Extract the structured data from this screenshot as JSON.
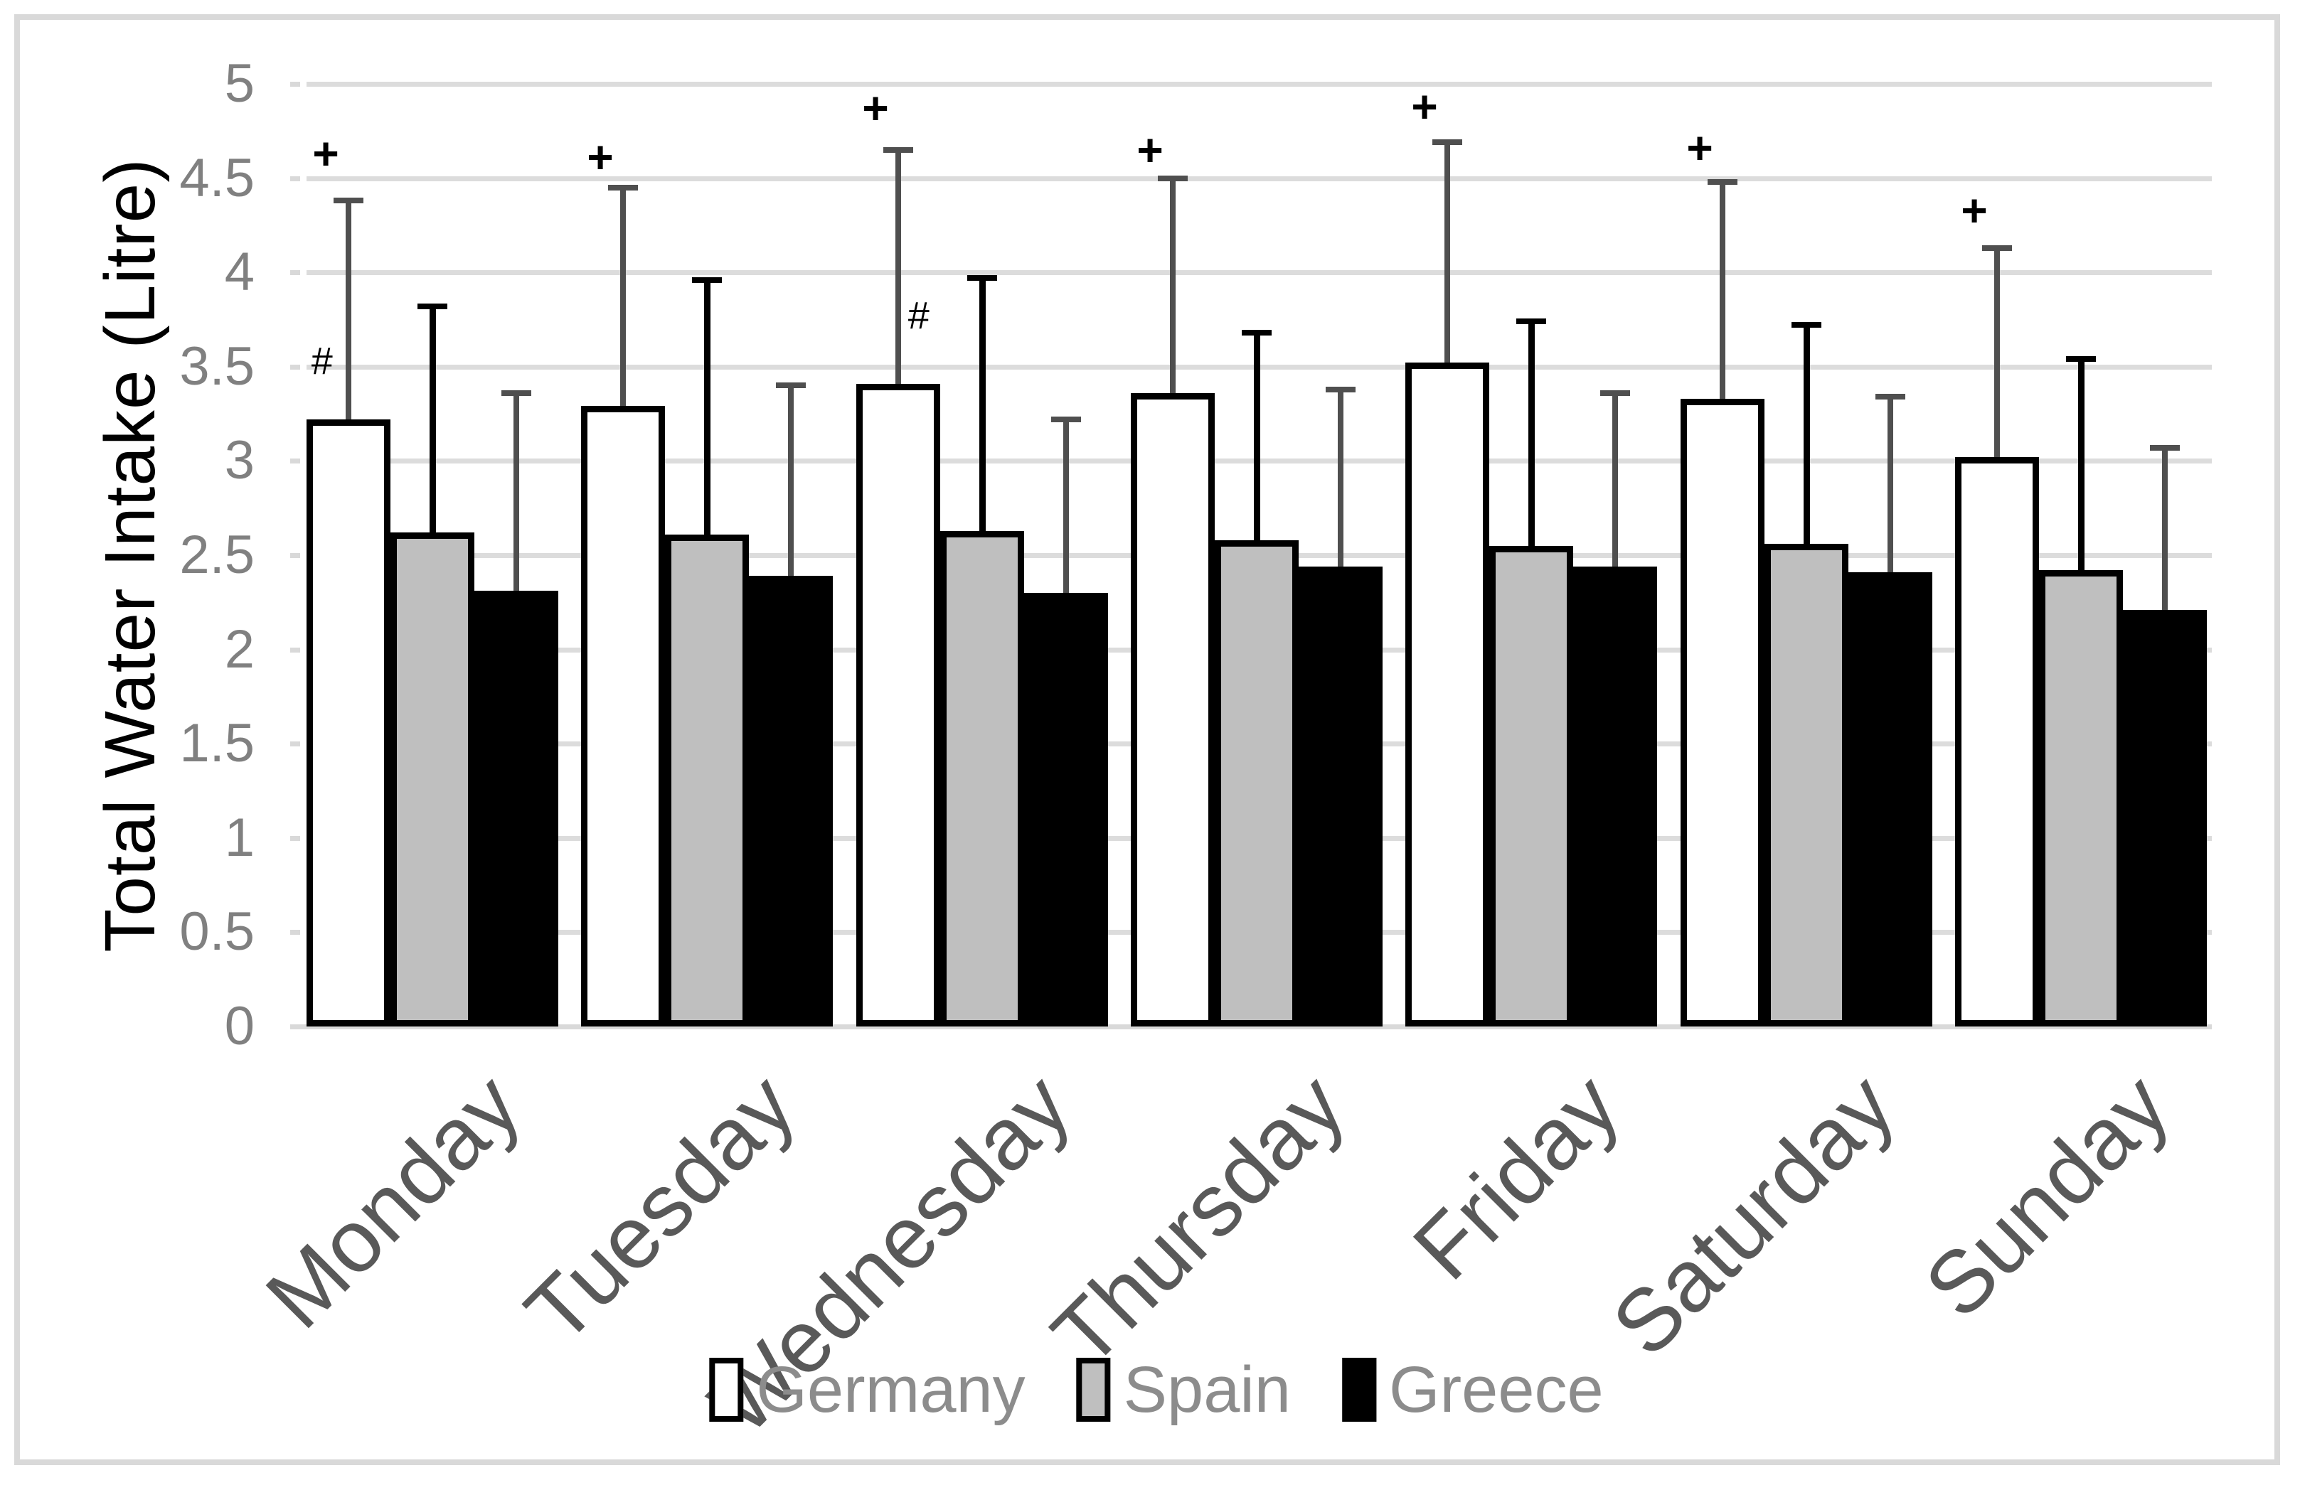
{
  "colors": {
    "background": "#ffffff",
    "frame_border": "#d9d9d9",
    "gridline": "#dcdcdc",
    "baseline": "#d9d9d9",
    "tick_mark": "#d9d9d9",
    "axis_tick_label": "#808080",
    "category_label": "#595959",
    "legend_text": "#8c8c8c",
    "y_axis_title": "#000000",
    "annotation": "#000000"
  },
  "chart_data": {
    "type": "bar",
    "title": "",
    "xlabel": "",
    "ylabel": "Total Water Intake (Litre)",
    "ylim": [
      0,
      5
    ],
    "ytick_step": 0.5,
    "ytick_labels": [
      "0",
      "0.5",
      "1",
      "1.5",
      "2",
      "2.5",
      "3",
      "3.5",
      "4",
      "4.5",
      "5"
    ],
    "grid": true,
    "legend_position": "bottom",
    "categories": [
      "Monday",
      "Tuesday",
      "Wednesday",
      "Thursday",
      "Friday",
      "Saturday",
      "Sunday"
    ],
    "series": [
      {
        "name": "Germany",
        "fill": "#ffffff",
        "border_color": "#000000",
        "error_color": "#4f4f4f",
        "values": [
          3.22,
          3.29,
          3.41,
          3.36,
          3.52,
          3.33,
          3.02
        ],
        "error_top": [
          4.38,
          4.45,
          4.65,
          4.5,
          4.69,
          4.48,
          4.13
        ]
      },
      {
        "name": "Spain",
        "fill": "#bfbfbf",
        "border_color": "#000000",
        "error_color": "#000000",
        "values": [
          2.62,
          2.61,
          2.63,
          2.58,
          2.55,
          2.56,
          2.42
        ],
        "error_top": [
          3.82,
          3.96,
          3.97,
          3.68,
          3.74,
          3.72,
          3.54
        ]
      },
      {
        "name": "Greece",
        "fill": "#000000",
        "border_color": "#000000",
        "error_color": "#4f4f4f",
        "values": [
          2.31,
          2.39,
          2.3,
          2.44,
          2.44,
          2.41,
          2.21
        ],
        "error_top": [
          3.36,
          3.4,
          3.22,
          3.38,
          3.36,
          3.34,
          3.07
        ]
      }
    ],
    "annotations": {
      "plus": {
        "symbol": "+",
        "on_series": "Germany",
        "y": [
          4.63,
          4.61,
          4.87,
          4.65,
          4.88,
          4.66,
          4.33
        ],
        "dx": -32
      },
      "hash": {
        "symbol": "#",
        "marks": [
          {
            "category_index": 0,
            "y": 3.53,
            "dx": -38
          },
          {
            "category_index": 2,
            "y": 3.77,
            "dx": 28
          }
        ]
      }
    }
  }
}
